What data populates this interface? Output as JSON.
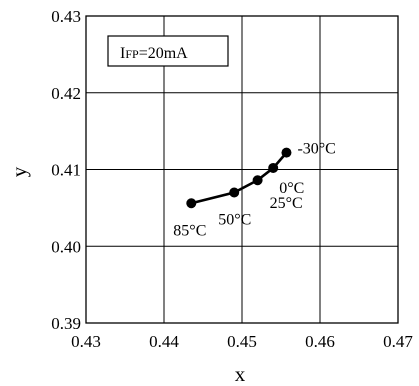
{
  "chart_data": {
    "type": "line",
    "title": "",
    "xlabel": "x",
    "ylabel": "y",
    "xlim": [
      0.43,
      0.47
    ],
    "ylim": [
      0.39,
      0.43
    ],
    "x_ticks": [
      "0.43",
      "0.44",
      "0.45",
      "0.46",
      "0.47"
    ],
    "y_ticks": [
      "0.39",
      "0.40",
      "0.41",
      "0.42",
      "0.43"
    ],
    "grid": true,
    "annotation": {
      "prefix": "I",
      "sub": "FP",
      "rest": "=20mA"
    },
    "series": [
      {
        "points": [
          {
            "x": 0.4435,
            "y": 0.4056,
            "label": "85°C"
          },
          {
            "x": 0.449,
            "y": 0.407,
            "label": "50°C"
          },
          {
            "x": 0.452,
            "y": 0.4086,
            "label": "25°C"
          },
          {
            "x": 0.454,
            "y": 0.4102,
            "label": "0°C"
          },
          {
            "x": 0.4557,
            "y": 0.4122,
            "label": "-30°C"
          }
        ]
      }
    ]
  }
}
